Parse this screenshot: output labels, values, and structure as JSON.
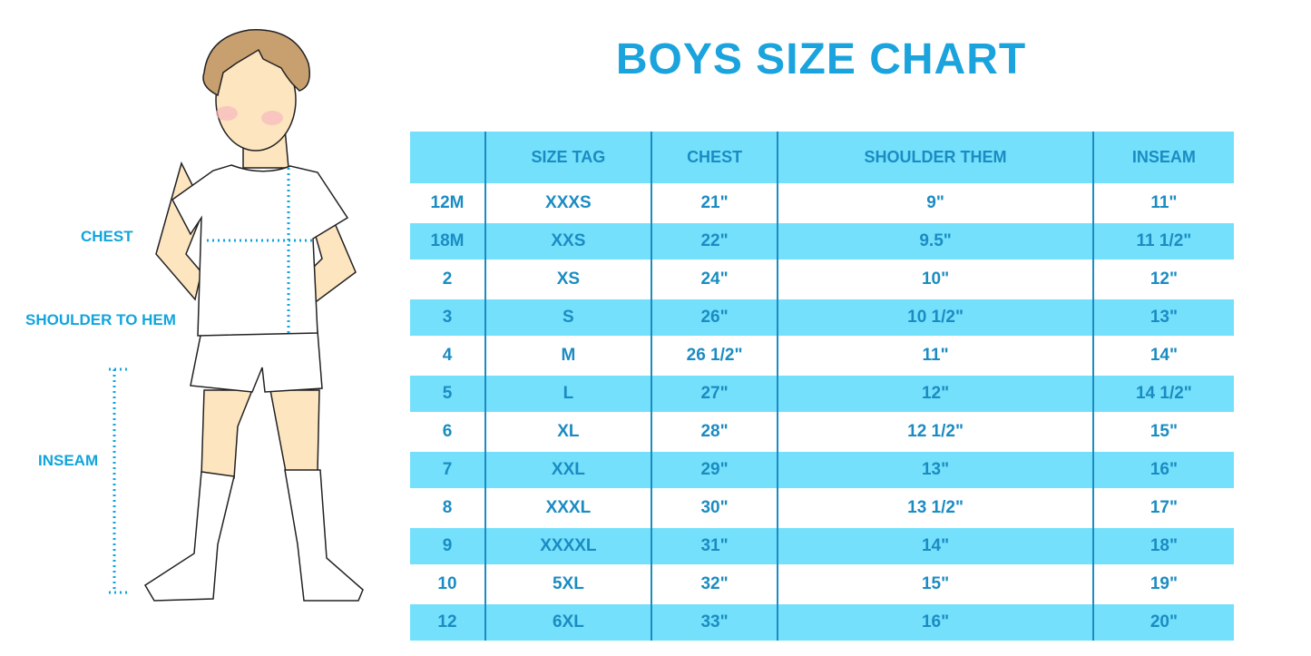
{
  "title": "BOYS SIZE CHART",
  "figure_labels": {
    "chest": "CHEST",
    "shoulder_to_hem": "SHOULDER TO HEM",
    "inseam": "INSEAM"
  },
  "colors": {
    "title": "#1aa3dd",
    "header_bg": "#74e0fc",
    "text": "#1b8cc2"
  },
  "table": {
    "headers": [
      "",
      "SIZE TAG",
      "CHEST",
      "SHOULDER THEM",
      "INSEAM"
    ],
    "rows": [
      [
        "12M",
        "XXXS",
        "21\"",
        "9\"",
        "11\""
      ],
      [
        "18M",
        "XXS",
        "22\"",
        "9.5\"",
        "11 1/2\""
      ],
      [
        "2",
        "XS",
        "24\"",
        "10\"",
        "12\""
      ],
      [
        "3",
        "S",
        "26\"",
        "10 1/2\"",
        "13\""
      ],
      [
        "4",
        "M",
        "26 1/2\"",
        "11\"",
        "14\""
      ],
      [
        "5",
        "L",
        "27\"",
        "12\"",
        "14 1/2\""
      ],
      [
        "6",
        "XL",
        "28\"",
        "12 1/2\"",
        "15\""
      ],
      [
        "7",
        "XXL",
        "29\"",
        "13\"",
        "16\""
      ],
      [
        "8",
        "XXXL",
        "30\"",
        "13 1/2\"",
        "17\""
      ],
      [
        "9",
        "XXXXL",
        "31\"",
        "14\"",
        "18\""
      ],
      [
        "10",
        "5XL",
        "32\"",
        "15\"",
        "19\""
      ],
      [
        "12",
        "6XL",
        "33\"",
        "16\"",
        "20\""
      ]
    ]
  }
}
